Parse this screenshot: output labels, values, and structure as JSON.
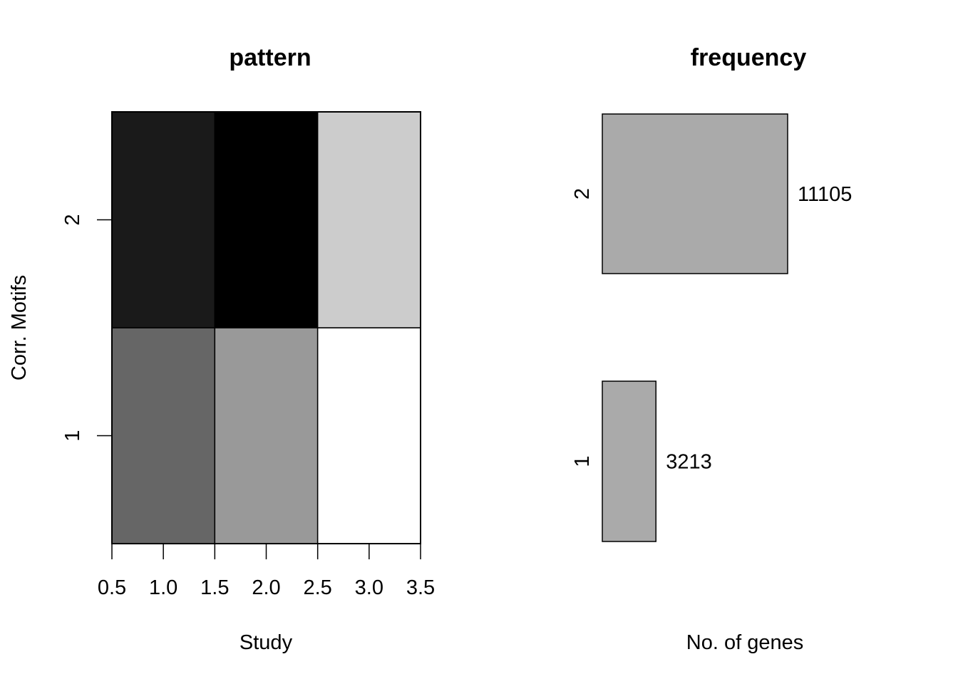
{
  "chart_data": [
    {
      "type": "heatmap",
      "title": "pattern",
      "xlabel": "Study",
      "ylabel": "Corr. Motifs",
      "xlim": [
        0.5,
        3.5
      ],
      "x_ticks": [
        "0.5",
        "1.0",
        "1.5",
        "2.0",
        "2.5",
        "3.0",
        "3.5"
      ],
      "y_ticks": [
        "1",
        "2"
      ],
      "columns": [
        1,
        2,
        3
      ],
      "rows": [
        {
          "motif": "1",
          "cells": [
            "#666666",
            "#999999",
            "#ffffff"
          ]
        },
        {
          "motif": "2",
          "cells": [
            "#1a1a1a",
            "#000000",
            "#cccccc"
          ]
        }
      ],
      "grid": false
    },
    {
      "type": "bar",
      "orientation": "horizontal",
      "title": "frequency",
      "xlabel": "No. of genes",
      "categories": [
        "1",
        "2"
      ],
      "values": [
        3213,
        11105
      ],
      "value_labels": [
        "3213",
        "11105"
      ],
      "bar_color": "#aaaaaa",
      "grid": false
    }
  ]
}
